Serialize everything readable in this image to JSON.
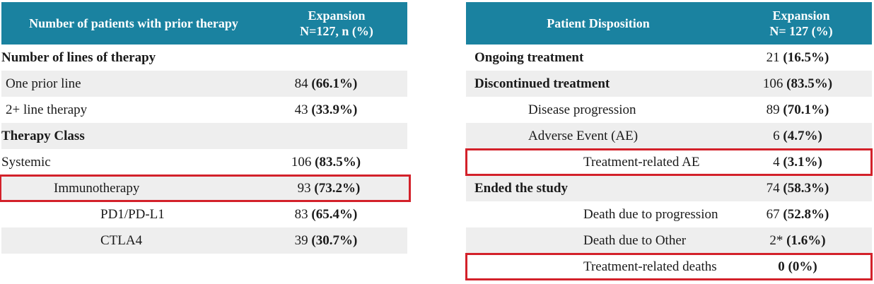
{
  "left_table": {
    "header": {
      "col1": "Number of patients with prior therapy",
      "col2_line1": "Expansion",
      "col2_line2": "N=127, n (%)"
    },
    "rows": [
      {
        "label": "Number of lines of therapy",
        "n": "",
        "pct": ""
      },
      {
        "label": "One prior line",
        "n": "84",
        "pct": "(66.1%)"
      },
      {
        "label": "2+ line therapy",
        "n": "43",
        "pct": "(33.9%)"
      },
      {
        "label": "Therapy Class",
        "n": "",
        "pct": ""
      },
      {
        "label": "Systemic",
        "n": "106",
        "pct": "(83.5%)"
      },
      {
        "label": "Immunotherapy",
        "n": "93",
        "pct": "(73.2%)"
      },
      {
        "label": "PD1/PD-L1",
        "n": "83",
        "pct": "(65.4%)"
      },
      {
        "label": "CTLA4",
        "n": "39",
        "pct": "(30.7%)"
      }
    ]
  },
  "right_table": {
    "header": {
      "col1": "Patient Disposition",
      "col2_line1": "Expansion",
      "col2_line2": "N= 127 (%)"
    },
    "rows": [
      {
        "label": "Ongoing treatment",
        "n": "21",
        "pct": "(16.5%)"
      },
      {
        "label": "Discontinued treatment",
        "n": "106",
        "pct": "(83.5%)"
      },
      {
        "label": "Disease progression",
        "n": "89",
        "pct": "(70.1%)"
      },
      {
        "label": "Adverse Event (AE)",
        "n": "6",
        "pct": "(4.7%)"
      },
      {
        "label": "Treatment-related AE",
        "n": "4",
        "pct": "(3.1%)"
      },
      {
        "label": "Ended the study",
        "n": "74",
        "pct": "(58.3%)"
      },
      {
        "label": "Death due to progression",
        "n": "67",
        "pct": "(52.8%)"
      },
      {
        "label": "Death due to Other",
        "n": "2*",
        "pct": "(1.6%)"
      },
      {
        "label": "Treatment-related deaths",
        "n": "0",
        "pct": "(0%)"
      }
    ]
  },
  "colors": {
    "header_bg": "#1a82a0",
    "row_shade": "#eeeeee",
    "highlight": "#d3212a"
  }
}
